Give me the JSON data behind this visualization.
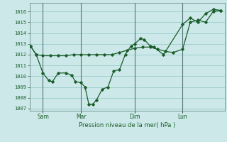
{
  "xlabel": "Pression niveau de la mer( hPa )",
  "bg_color": "#cce8e8",
  "grid_color": "#99cccc",
  "line_color": "#1a5c2a",
  "marker_color": "#1a5c2a",
  "ylim": [
    1006.8,
    1016.8
  ],
  "yticks": [
    1007,
    1008,
    1009,
    1010,
    1011,
    1012,
    1013,
    1014,
    1015,
    1016
  ],
  "xlim": [
    0.0,
    10.2
  ],
  "vlines_x": [
    0.7,
    2.7,
    5.5,
    8.0
  ],
  "vline_labels": [
    "Sam",
    "Mar",
    "Dim",
    "Lun"
  ],
  "series1_x": [
    0.05,
    0.35,
    0.7,
    1.1,
    1.5,
    1.9,
    2.3,
    2.7,
    3.1,
    3.5,
    3.9,
    4.3,
    4.7,
    5.1,
    5.5,
    5.9,
    6.3,
    6.7,
    7.1,
    7.5,
    8.0,
    8.4,
    8.8,
    9.2,
    9.6,
    10.0
  ],
  "series1_y": [
    1012.8,
    1012.0,
    1011.9,
    1011.9,
    1011.9,
    1011.9,
    1012.0,
    1012.0,
    1012.0,
    1012.0,
    1012.0,
    1012.0,
    1012.2,
    1012.4,
    1012.6,
    1012.7,
    1012.7,
    1012.5,
    1012.3,
    1012.2,
    1012.5,
    1015.0,
    1015.2,
    1015.0,
    1016.0,
    1016.1
  ],
  "series2_x": [
    0.05,
    0.35,
    0.7,
    1.0,
    1.2,
    1.5,
    1.9,
    2.2,
    2.4,
    2.7,
    2.9,
    3.1,
    3.3,
    3.5,
    3.8,
    4.1,
    4.4,
    4.7,
    5.0,
    5.3,
    5.5,
    5.8,
    6.0,
    6.3,
    6.5,
    7.0,
    8.0,
    8.4,
    8.8,
    9.2,
    9.6,
    10.0
  ],
  "series2_y": [
    1012.8,
    1012.0,
    1010.3,
    1009.6,
    1009.5,
    1010.3,
    1010.3,
    1010.1,
    1009.5,
    1009.4,
    1009.0,
    1007.4,
    1007.4,
    1007.8,
    1008.8,
    1009.0,
    1010.5,
    1010.6,
    1012.0,
    1012.8,
    1013.0,
    1013.5,
    1013.4,
    1012.8,
    1012.7,
    1012.0,
    1014.8,
    1015.4,
    1015.0,
    1015.8,
    1016.2,
    1016.1
  ]
}
